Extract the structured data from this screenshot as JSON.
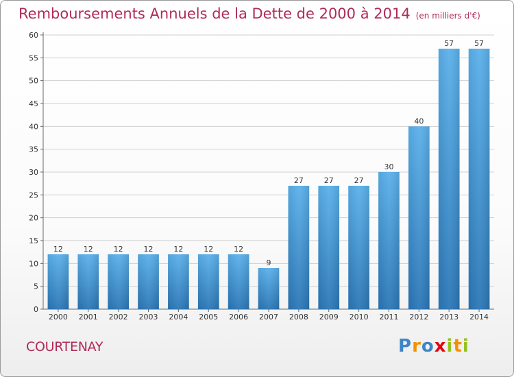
{
  "header": {
    "title": "Remboursements Annuels de la Dette de 2000 à 2014",
    "unit": "(en milliers d'€)"
  },
  "footer": {
    "city": "COURTENAY",
    "logo": "Proxiti"
  },
  "colors": {
    "title": "#b02a5a",
    "bar_light": "#5aaee8",
    "bar_dark": "#2a78b8",
    "grid": "#cccccc"
  },
  "chart_data": {
    "type": "bar",
    "title": "Remboursements Annuels de la Dette de 2000 à 2014",
    "xlabel": "",
    "ylabel": "",
    "categories": [
      "2000",
      "2001",
      "2002",
      "2003",
      "2004",
      "2005",
      "2006",
      "2007",
      "2008",
      "2009",
      "2010",
      "2011",
      "2012",
      "2013",
      "2014"
    ],
    "values": [
      12,
      12,
      12,
      12,
      12,
      12,
      12,
      9,
      27,
      27,
      27,
      30,
      40,
      57,
      57
    ],
    "ylim": [
      0,
      60
    ],
    "yticks": [
      0,
      5,
      10,
      15,
      20,
      25,
      30,
      35,
      40,
      45,
      50,
      55,
      60
    ],
    "grid": true
  }
}
